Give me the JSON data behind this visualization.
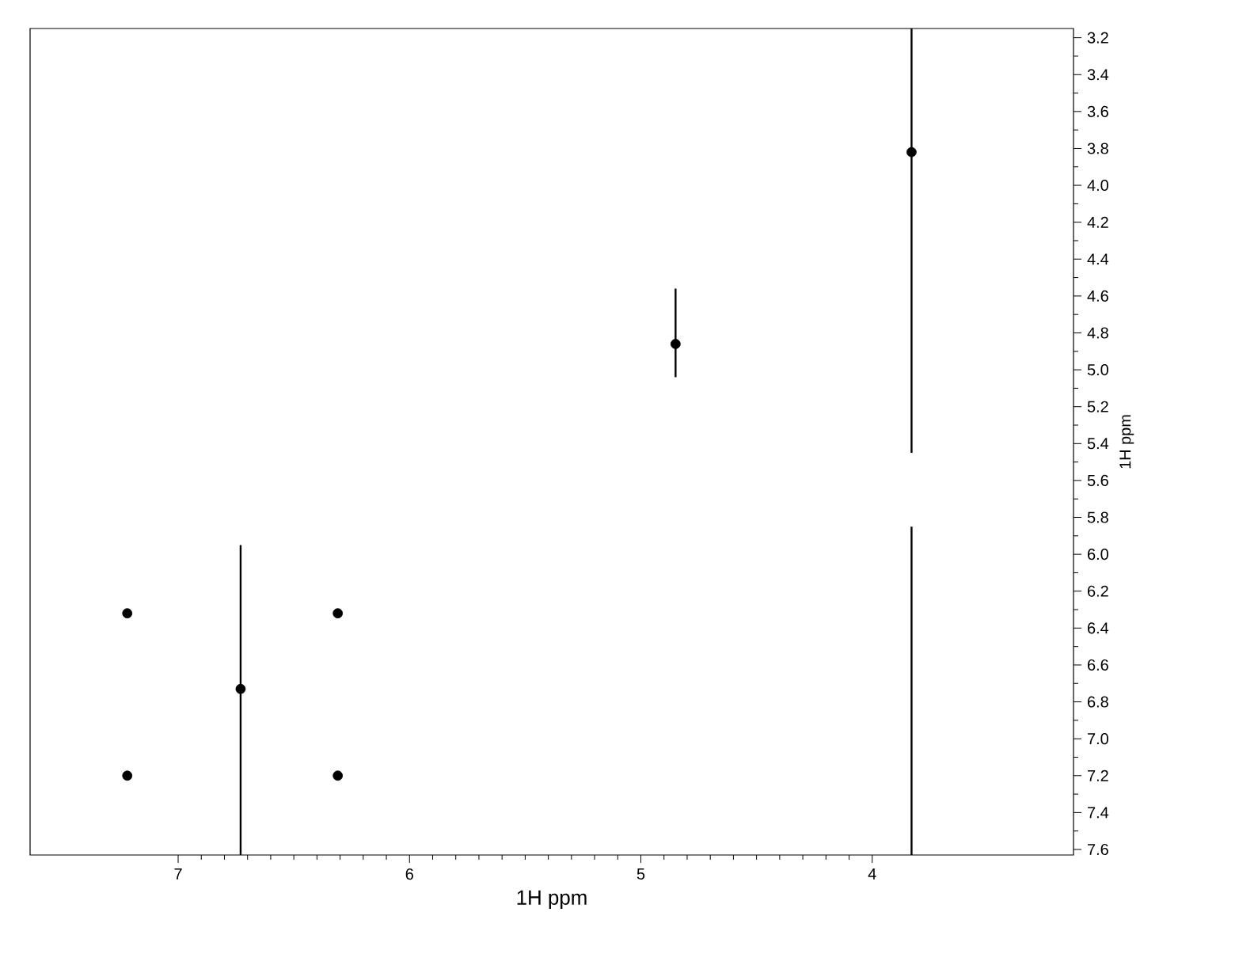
{
  "chart_data": {
    "type": "scatter",
    "xlabel": "1H ppm",
    "ylabel": "1H ppm",
    "xlim": [
      7.64,
      3.13
    ],
    "ylim": [
      7.63,
      3.15
    ],
    "xticks": [
      7,
      6,
      5,
      4
    ],
    "yticks": [
      {
        "value": 3.2,
        "label": "3.2"
      },
      {
        "value": 3.4,
        "label": "3.4"
      },
      {
        "value": 3.6,
        "label": "3.6"
      },
      {
        "value": 3.8,
        "label": "3.8"
      },
      {
        "value": 4.0,
        "label": "4.0"
      },
      {
        "value": 4.2,
        "label": "4.2"
      },
      {
        "value": 4.4,
        "label": "4.4"
      },
      {
        "value": 4.6,
        "label": "4.6"
      },
      {
        "value": 4.8,
        "label": "4.8"
      },
      {
        "value": 5.0,
        "label": "5.0"
      },
      {
        "value": 5.2,
        "label": "5.2"
      },
      {
        "value": 5.4,
        "label": "5.4"
      },
      {
        "value": 5.6,
        "label": "5.6"
      },
      {
        "value": 5.8,
        "label": "5.8"
      },
      {
        "value": 6.0,
        "label": "6.0"
      },
      {
        "value": 6.2,
        "label": "6.2"
      },
      {
        "value": 6.4,
        "label": "6.4"
      },
      {
        "value": 6.6,
        "label": "6.6"
      },
      {
        "value": 6.8,
        "label": "6.8"
      },
      {
        "value": 7.0,
        "label": "7.0"
      },
      {
        "value": 7.2,
        "label": "7.2"
      },
      {
        "value": 7.4,
        "label": "7.4"
      },
      {
        "value": 7.6,
        "label": "7.6"
      }
    ],
    "grid": false,
    "series": [
      {
        "color": "#000000",
        "marker": "circle",
        "x": [
          3.83,
          4.85,
          6.73,
          6.31,
          7.22,
          7.22,
          6.31
        ],
        "values": [
          3.82,
          4.86,
          6.73,
          6.32,
          7.2,
          6.32,
          7.2
        ]
      },
      {
        "type": "line",
        "color": "#000000",
        "line_style": "solid",
        "marker": "none",
        "x": [
          3.83,
          3.83
        ],
        "values": [
          3.15,
          5.45
        ]
      },
      {
        "type": "line",
        "color": "#000000",
        "line_style": "solid",
        "marker": "none",
        "x": [
          3.83,
          3.83
        ],
        "values": [
          5.85,
          7.63
        ]
      },
      {
        "type": "line",
        "color": "#000000",
        "line_style": "solid",
        "marker": "none",
        "x": [
          6.73,
          6.73
        ],
        "values": [
          5.95,
          7.63
        ]
      },
      {
        "type": "line",
        "color": "#000000",
        "line_style": "solid",
        "marker": "none",
        "x": [
          4.85,
          4.85
        ],
        "values": [
          4.56,
          5.04
        ]
      }
    ]
  }
}
